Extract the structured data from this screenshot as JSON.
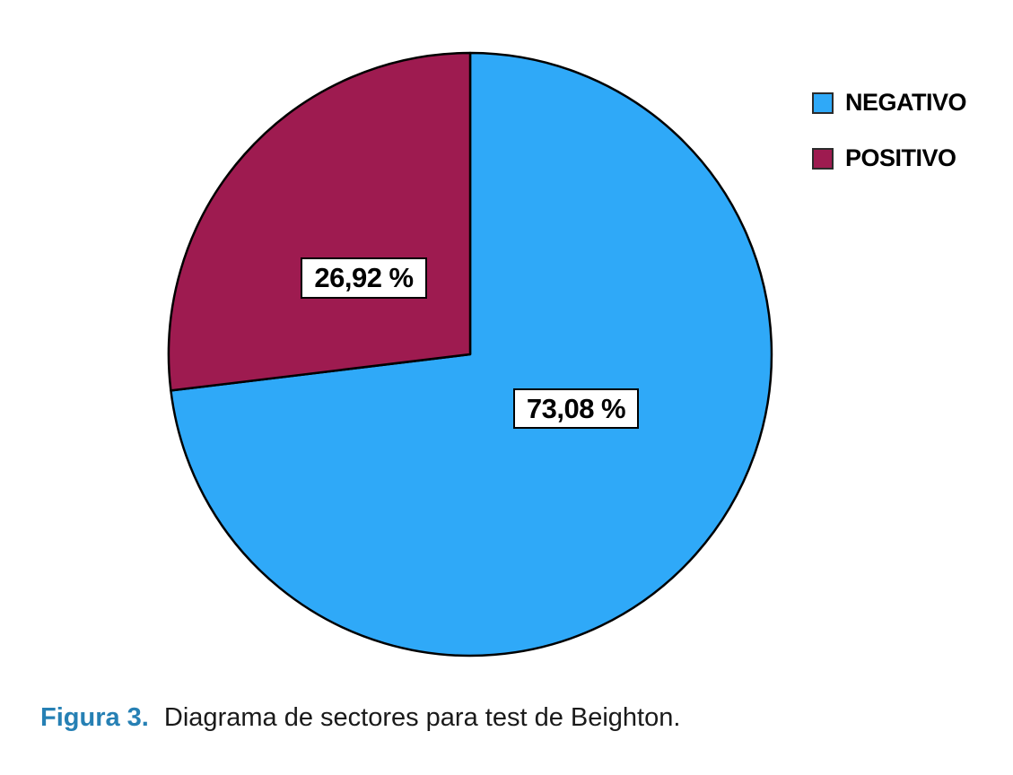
{
  "figure": {
    "caption": {
      "label": "Figura 3.",
      "text": "Diagrama de sectores para test de Beighton.",
      "accent_color": "#2680B4"
    }
  },
  "chart_data": {
    "type": "pie",
    "title": "",
    "legend_position": "top-right",
    "start_angle_deg": -90,
    "direction": "clockwise",
    "stroke_color": "#000000",
    "categories": [
      "NEGATIVO",
      "POSITIVO"
    ],
    "slices": [
      {
        "name": "NEGATIVO",
        "value": 73.08,
        "display_label": "73,08 %",
        "color": "#2FA9F8"
      },
      {
        "name": "POSITIVO",
        "value": 26.92,
        "display_label": "26,92 %",
        "color": "#9E1B50"
      }
    ]
  }
}
